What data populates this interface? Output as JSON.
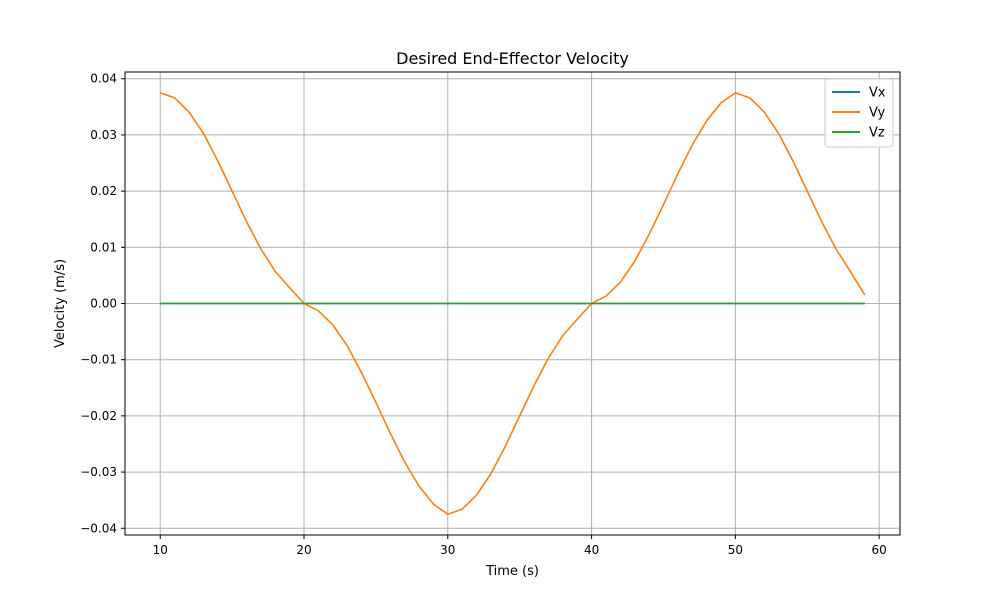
{
  "chart_data": {
    "type": "line",
    "title": "Desired End-Effector Velocity",
    "xlabel": "Time (s)",
    "ylabel": "Velocity (m/s)",
    "xlim": [
      7.55,
      61.45
    ],
    "ylim": [
      -0.0412,
      0.0412
    ],
    "xticks": [
      10,
      20,
      30,
      40,
      50,
      60
    ],
    "yticks": [
      -0.04,
      -0.03,
      -0.02,
      -0.01,
      0.0,
      0.01,
      0.02,
      0.03,
      0.04
    ],
    "xtick_labels": [
      "10",
      "20",
      "30",
      "40",
      "50",
      "60"
    ],
    "ytick_labels": [
      "−0.04",
      "−0.03",
      "−0.02",
      "−0.01",
      "0.00",
      "0.01",
      "0.02",
      "0.03",
      "0.04"
    ],
    "grid": true,
    "legend_position": "top-right",
    "x": [
      10,
      11,
      12,
      13,
      14,
      15,
      16,
      17,
      18,
      19,
      20,
      21,
      22,
      23,
      24,
      25,
      26,
      27,
      28,
      29,
      30,
      31,
      32,
      33,
      34,
      35,
      36,
      37,
      38,
      39,
      40,
      41,
      42,
      43,
      44,
      45,
      46,
      47,
      48,
      49,
      50,
      51,
      52,
      53,
      54,
      55,
      56,
      57,
      58,
      59
    ],
    "series": [
      {
        "name": "Vx",
        "color": "#1f77b4",
        "values": [
          0,
          0,
          0,
          0,
          0,
          0,
          0,
          0,
          0,
          0,
          0,
          0,
          0,
          0,
          0,
          0,
          0,
          0,
          0,
          0,
          0,
          0,
          0,
          0,
          0,
          0,
          0,
          0,
          0,
          0,
          0,
          0,
          0,
          0,
          0,
          0,
          0,
          0,
          0,
          0,
          0,
          0,
          0,
          0,
          0,
          0,
          0,
          0,
          0,
          0
        ]
      },
      {
        "name": "Vy",
        "color": "#ff7f0e",
        "values": [
          0.0375,
          0.0366,
          0.0341,
          0.0303,
          0.0254,
          0.02,
          0.0146,
          0.0097,
          0.0057,
          0.0028,
          0.0,
          -0.0013,
          -0.0038,
          -0.0075,
          -0.0123,
          -0.0176,
          -0.0231,
          -0.0282,
          -0.0325,
          -0.0357,
          -0.0375,
          -0.0366,
          -0.0341,
          -0.0303,
          -0.0254,
          -0.02,
          -0.0146,
          -0.0097,
          -0.0057,
          -0.0028,
          0.0,
          0.0013,
          0.0038,
          0.0075,
          0.0123,
          0.0176,
          0.0231,
          0.0282,
          0.0325,
          0.0357,
          0.0375,
          0.0366,
          0.0341,
          0.0303,
          0.0254,
          0.02,
          0.0146,
          0.0097,
          0.0057,
          0.0015
        ]
      },
      {
        "name": "Vz",
        "color": "#2ca02c",
        "values": [
          0,
          0,
          0,
          0,
          0,
          0,
          0,
          0,
          0,
          0,
          0,
          0,
          0,
          0,
          0,
          0,
          0,
          0,
          0,
          0,
          0,
          0,
          0,
          0,
          0,
          0,
          0,
          0,
          0,
          0,
          0,
          0,
          0,
          0,
          0,
          0,
          0,
          0,
          0,
          0,
          0,
          0,
          0,
          0,
          0,
          0,
          0,
          0,
          0,
          0
        ]
      }
    ]
  }
}
